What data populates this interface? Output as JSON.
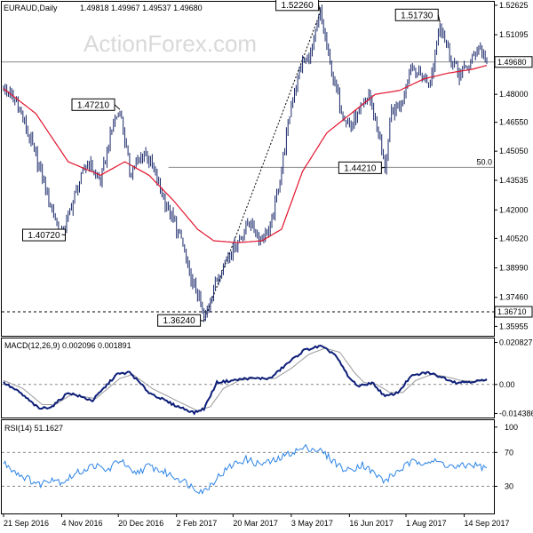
{
  "header": {
    "symbol": "EURAUD,Daily",
    "ohlc": "1.49818 1.49967 1.49537 1.49680"
  },
  "watermark": "ActionForex.com",
  "colors": {
    "candle": "#1b2a6b",
    "ma": "#e2142d",
    "macd_main": "#0d1e78",
    "macd_signal": "#9a9a9a",
    "rsi": "#2d84e6",
    "trendline": "#000000",
    "grid_ref": "#888888"
  },
  "chart_data": [
    {
      "type": "candlestick",
      "title": "EURAUD,Daily",
      "ylim": [
        1.3565,
        1.5262
      ],
      "yticks": [
        "1.52625",
        "1.51095",
        "1.49680",
        "1.48000",
        "1.46550",
        "1.45050",
        "1.43535",
        "1.42000",
        "1.40520",
        "1.38990",
        "1.37460",
        "1.35955"
      ],
      "ytick_values": [
        1.52625,
        1.51095,
        1.4968,
        1.48,
        1.4655,
        1.4505,
        1.43535,
        1.42,
        1.4052,
        1.3899,
        1.3746,
        1.35955
      ],
      "xticks": [
        "21 Sep 2016",
        "4 Nov 2016",
        "20 Dec 2016",
        "2 Feb 2017",
        "20 Mar 2017",
        "3 May 2017",
        "16 Jun 2017",
        "1 Aug 2017",
        "14 Sep 2017"
      ],
      "price_anchors": [
        [
          0,
          1.483
        ],
        [
          8,
          1.476
        ],
        [
          20,
          1.448
        ],
        [
          30,
          1.42
        ],
        [
          36,
          1.4072
        ],
        [
          45,
          1.43
        ],
        [
          52,
          1.445
        ],
        [
          60,
          1.435
        ],
        [
          68,
          1.465
        ],
        [
          72,
          1.4721
        ],
        [
          78,
          1.44
        ],
        [
          88,
          1.45
        ],
        [
          95,
          1.435
        ],
        [
          102,
          1.42
        ],
        [
          110,
          1.405
        ],
        [
          115,
          1.386
        ],
        [
          120,
          1.376
        ],
        [
          124,
          1.3624
        ],
        [
          130,
          1.38
        ],
        [
          138,
          1.395
        ],
        [
          146,
          1.405
        ],
        [
          152,
          1.415
        ],
        [
          158,
          1.405
        ],
        [
          165,
          1.41
        ],
        [
          172,
          1.442
        ],
        [
          178,
          1.475
        ],
        [
          184,
          1.495
        ],
        [
          190,
          1.5
        ],
        [
          196,
          1.5226
        ],
        [
          202,
          1.495
        ],
        [
          208,
          1.475
        ],
        [
          214,
          1.463
        ],
        [
          220,
          1.47
        ],
        [
          226,
          1.48
        ],
        [
          232,
          1.46
        ],
        [
          236,
          1.4421
        ],
        [
          240,
          1.47
        ],
        [
          246,
          1.475
        ],
        [
          252,
          1.495
        ],
        [
          258,
          1.49
        ],
        [
          264,
          1.485
        ],
        [
          270,
          1.5173
        ],
        [
          276,
          1.5
        ],
        [
          282,
          1.49
        ],
        [
          288,
          1.495
        ],
        [
          294,
          1.505
        ],
        [
          299,
          1.4968
        ]
      ],
      "ma_anchors": [
        [
          0,
          1.483
        ],
        [
          20,
          1.47
        ],
        [
          40,
          1.445
        ],
        [
          60,
          1.438
        ],
        [
          75,
          1.445
        ],
        [
          90,
          1.438
        ],
        [
          105,
          1.425
        ],
        [
          120,
          1.41
        ],
        [
          130,
          1.404
        ],
        [
          145,
          1.403
        ],
        [
          160,
          1.404
        ],
        [
          172,
          1.41
        ],
        [
          185,
          1.44
        ],
        [
          200,
          1.46
        ],
        [
          215,
          1.47
        ],
        [
          230,
          1.48
        ],
        [
          245,
          1.482
        ],
        [
          260,
          1.488
        ],
        [
          275,
          1.491
        ],
        [
          290,
          1.493
        ],
        [
          299,
          1.495
        ]
      ],
      "trendline": [
        [
          124,
          1.3624
        ],
        [
          196,
          1.5226
        ]
      ],
      "hlines": [
        {
          "value": 1.4968,
          "style": "solid"
        },
        {
          "value": 1.4421,
          "style": "solid",
          "from_index": 102,
          "label": "50.0"
        },
        {
          "value": 1.3671,
          "style": "dashed"
        }
      ],
      "annotations": [
        {
          "text": "1.52260",
          "index": 196,
          "value": 1.5226,
          "align": "left"
        },
        {
          "text": "1.51730",
          "index": 270,
          "value": 1.5173,
          "align": "left"
        },
        {
          "text": "1.47210",
          "index": 72,
          "value": 1.4721,
          "align": "left"
        },
        {
          "text": "1.44210",
          "index": 236,
          "value": 1.4421,
          "align": "left"
        },
        {
          "text": "1.40720",
          "index": 36,
          "value": 1.4072,
          "align": "left"
        },
        {
          "text": "1.36240",
          "index": 124,
          "value": 1.3624,
          "align": "left"
        }
      ],
      "markers": [
        {
          "text": "1.49680",
          "value": 1.4968
        },
        {
          "text": "1.36710",
          "value": 1.3671
        }
      ]
    },
    {
      "type": "line",
      "title": "MACD(12,26,9) 0.002096 0.001891",
      "ylim": [
        -0.0155,
        0.0215
      ],
      "yticks": [
        "0.020827",
        "0.00",
        "-0.014386"
      ],
      "ytick_values": [
        0.020827,
        0.0,
        -0.014386
      ],
      "series": [
        {
          "name": "MACD",
          "anchors": [
            [
              0,
              0.001
            ],
            [
              10,
              -0.004
            ],
            [
              22,
              -0.012
            ],
            [
              30,
              -0.011
            ],
            [
              40,
              -0.004
            ],
            [
              55,
              -0.008
            ],
            [
              70,
              0.005
            ],
            [
              78,
              0.006
            ],
            [
              90,
              -0.004
            ],
            [
              105,
              -0.01
            ],
            [
              118,
              -0.014
            ],
            [
              124,
              -0.012
            ],
            [
              132,
              0.001
            ],
            [
              142,
              0.002
            ],
            [
              150,
              0.003
            ],
            [
              165,
              0.003
            ],
            [
              175,
              0.01
            ],
            [
              186,
              0.017
            ],
            [
              196,
              0.019
            ],
            [
              205,
              0.015
            ],
            [
              214,
              0.003
            ],
            [
              220,
              -0.001
            ],
            [
              228,
              0.001
            ],
            [
              236,
              -0.006
            ],
            [
              244,
              -0.004
            ],
            [
              252,
              0.004
            ],
            [
              262,
              0.006
            ],
            [
              270,
              0.004
            ],
            [
              280,
              0.001
            ],
            [
              290,
              0.0015
            ],
            [
              299,
              0.0021
            ]
          ]
        },
        {
          "name": "Signal",
          "anchors": [
            [
              0,
              0.002
            ],
            [
              12,
              -0.002
            ],
            [
              24,
              -0.01
            ],
            [
              32,
              -0.01
            ],
            [
              42,
              -0.005
            ],
            [
              57,
              -0.007
            ],
            [
              72,
              0.003
            ],
            [
              80,
              0.005
            ],
            [
              92,
              -0.002
            ],
            [
              107,
              -0.008
            ],
            [
              120,
              -0.013
            ],
            [
              128,
              -0.011
            ],
            [
              136,
              -0.002
            ],
            [
              146,
              0.002
            ],
            [
              155,
              0.003
            ],
            [
              168,
              0.003
            ],
            [
              178,
              0.008
            ],
            [
              189,
              0.015
            ],
            [
              199,
              0.018
            ],
            [
              208,
              0.016
            ],
            [
              217,
              0.006
            ],
            [
              223,
              0.001
            ],
            [
              231,
              0.0
            ],
            [
              239,
              -0.004
            ],
            [
              247,
              -0.004
            ],
            [
              255,
              0.002
            ],
            [
              265,
              0.005
            ],
            [
              273,
              0.004
            ],
            [
              283,
              0.002
            ],
            [
              292,
              0.0015
            ],
            [
              299,
              0.0019
            ]
          ]
        }
      ]
    },
    {
      "type": "line",
      "title": "RSI(14) 51.1627",
      "ylim": [
        0,
        105
      ],
      "yticks": [
        "100",
        "70",
        "30"
      ],
      "ytick_values": [
        100,
        70,
        30
      ],
      "series": [
        {
          "name": "RSI",
          "anchors": [
            [
              0,
              58
            ],
            [
              10,
              44
            ],
            [
              22,
              32
            ],
            [
              30,
              40
            ],
            [
              36,
              35
            ],
            [
              46,
              46
            ],
            [
              56,
              55
            ],
            [
              64,
              48
            ],
            [
              72,
              62
            ],
            [
              80,
              44
            ],
            [
              90,
              54
            ],
            [
              100,
              46
            ],
            [
              110,
              38
            ],
            [
              118,
              28
            ],
            [
              124,
              24
            ],
            [
              132,
              40
            ],
            [
              142,
              56
            ],
            [
              150,
              62
            ],
            [
              158,
              56
            ],
            [
              168,
              60
            ],
            [
              178,
              70
            ],
            [
              188,
              76
            ],
            [
              196,
              72
            ],
            [
              204,
              60
            ],
            [
              212,
              48
            ],
            [
              222,
              56
            ],
            [
              230,
              44
            ],
            [
              236,
              36
            ],
            [
              244,
              48
            ],
            [
              252,
              58
            ],
            [
              262,
              60
            ],
            [
              270,
              58
            ],
            [
              280,
              52
            ],
            [
              290,
              56
            ],
            [
              299,
              51
            ]
          ]
        }
      ]
    }
  ]
}
